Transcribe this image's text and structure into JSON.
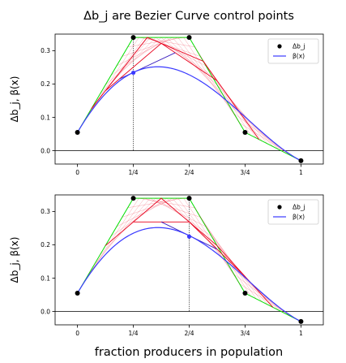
{
  "title": "Δb_j are Bezier Curve control points",
  "xlabel": "fraction producers in population",
  "ylabel": "Δb_j, β(x)",
  "colors": {
    "control_polygon": "#00e000",
    "construction": "#e8001c",
    "inner_construction": "#3a1fbf",
    "curve": "#3a3aff",
    "points": "#000000",
    "zero_line": "#000000",
    "guide_line": "#000000"
  },
  "chart_data": [
    {
      "type": "line",
      "xlim": [
        -0.1,
        1.1
      ],
      "ylim": [
        -0.04,
        0.35
      ],
      "xticks": [
        0,
        0.25,
        0.5,
        0.75,
        1
      ],
      "xtick_labels": [
        "0",
        "1/4",
        "2/4",
        "3/4",
        "1"
      ],
      "yticks": [
        0.0,
        0.1,
        0.2,
        0.3
      ],
      "ytick_labels": [
        "0.0",
        "0.1",
        "0.2",
        "0.3"
      ],
      "legend": {
        "placement": "top-right",
        "entries": [
          "Δb_j",
          "β(x)"
        ]
      },
      "control_points": {
        "name": "Δb_j",
        "x": [
          0,
          0.25,
          0.5,
          0.75,
          1
        ],
        "y": [
          0.055,
          0.34,
          0.34,
          0.055,
          -0.03
        ]
      },
      "curve_parameter": 0.25,
      "curve_value": [
        0.25,
        0.234
      ]
    },
    {
      "type": "line",
      "xlim": [
        -0.1,
        1.1
      ],
      "ylim": [
        -0.04,
        0.35
      ],
      "xticks": [
        0,
        0.25,
        0.5,
        0.75,
        1
      ],
      "xtick_labels": [
        "0",
        "1/4",
        "2/4",
        "3/4",
        "1"
      ],
      "yticks": [
        0.0,
        0.1,
        0.2,
        0.3
      ],
      "ytick_labels": [
        "0.0",
        "0.1",
        "0.2",
        "0.3"
      ],
      "legend": {
        "placement": "top-right",
        "entries": [
          "Δb_j",
          "β(x)"
        ]
      },
      "control_points": {
        "name": "Δb_j",
        "x": [
          0,
          0.25,
          0.5,
          0.75,
          1
        ],
        "y": [
          0.055,
          0.34,
          0.34,
          0.055,
          -0.03
        ]
      },
      "curve_parameter": 0.5,
      "curve_value": [
        0.5,
        0.225
      ]
    }
  ]
}
